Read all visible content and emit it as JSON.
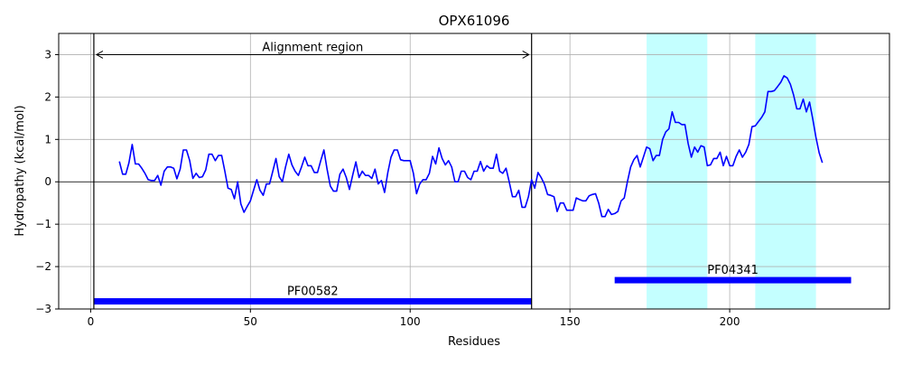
{
  "chart_data": {
    "type": "line",
    "title": "OPX61096",
    "xlabel": "Residues",
    "ylabel": "Hydropathy (kcal/mol)",
    "xlim": [
      -10,
      250
    ],
    "ylim": [
      -3,
      3.5
    ],
    "xticks": [
      0,
      50,
      100,
      150,
      200
    ],
    "yticks": [
      -3,
      -2,
      -1,
      0,
      1,
      2,
      3
    ],
    "ytick_labels": [
      "−3",
      "−2",
      "−1",
      "0",
      "1",
      "2",
      "3"
    ],
    "grid": true,
    "colors": {
      "line": "#0000ff",
      "domain_bar": "#0000ff",
      "highlight": "#c4ffff",
      "grid": "#b0b0b0",
      "axis": "#000000"
    },
    "alignment_region": {
      "label": "Alignment region",
      "x_start": 1,
      "x_end": 138,
      "arrow_y": 3.0
    },
    "highlight_regions": [
      {
        "x_start": 174,
        "x_end": 193
      },
      {
        "x_start": 208,
        "x_end": 227
      }
    ],
    "domains": [
      {
        "name": "PF00582",
        "x_start": 1,
        "x_end": 138,
        "y": -2.82
      },
      {
        "name": "PF04341",
        "x_start": 164,
        "x_end": 238,
        "y": -2.32
      }
    ],
    "series": [
      {
        "x": [
          9,
          10,
          11,
          12,
          13,
          14,
          15,
          16,
          17,
          18,
          19,
          20,
          21,
          22,
          23,
          24,
          25,
          26,
          27,
          28,
          29,
          30,
          31,
          32,
          33,
          34,
          35,
          36,
          37,
          38,
          39,
          40,
          41,
          42,
          43,
          44,
          45,
          46,
          47,
          48,
          49,
          50,
          51,
          52,
          53,
          54,
          55,
          56,
          57,
          58,
          59,
          60,
          61,
          62,
          63,
          64,
          65,
          66,
          67,
          68,
          69,
          70,
          71,
          72,
          73,
          74,
          75,
          76,
          77,
          78,
          79,
          80,
          81,
          82,
          83,
          84,
          85,
          86,
          87,
          88,
          89,
          90,
          91,
          92,
          93,
          94,
          95,
          96,
          97,
          98,
          99,
          100,
          101,
          102,
          103,
          104,
          105,
          106,
          107,
          108,
          109,
          110,
          111,
          112,
          113,
          114,
          115,
          116,
          117,
          118,
          119,
          120,
          121,
          122,
          123,
          124,
          125,
          126,
          127,
          128,
          129,
          130,
          131,
          132,
          133,
          134,
          135,
          136,
          137,
          138,
          139,
          140,
          141,
          142,
          143,
          144,
          145,
          146,
          147,
          148,
          149,
          150,
          151,
          152,
          153,
          154,
          155,
          156,
          157,
          158,
          159,
          160,
          161,
          162,
          163,
          164,
          165,
          166,
          167,
          168,
          169,
          170,
          171,
          172,
          173,
          174,
          175,
          176,
          177,
          178,
          179,
          180,
          181,
          182,
          183,
          184,
          185,
          186,
          187,
          188,
          189,
          190,
          191,
          192,
          193,
          194,
          195,
          196,
          197,
          198,
          199,
          200,
          201,
          202,
          203,
          204,
          205,
          206,
          207,
          208,
          209,
          210,
          211,
          212,
          213,
          214,
          215,
          216,
          217,
          218,
          219,
          220,
          221,
          222,
          223,
          224,
          225,
          226,
          227,
          228,
          229
        ],
        "values": [
          0.48,
          0.18,
          0.18,
          0.45,
          0.88,
          0.42,
          0.42,
          0.32,
          0.2,
          0.05,
          0.03,
          0.03,
          0.15,
          -0.08,
          0.25,
          0.35,
          0.35,
          0.32,
          0.07,
          0.3,
          0.75,
          0.75,
          0.5,
          0.08,
          0.2,
          0.1,
          0.12,
          0.28,
          0.65,
          0.65,
          0.5,
          0.62,
          0.62,
          0.25,
          -0.15,
          -0.18,
          -0.4,
          0.0,
          -0.52,
          -0.72,
          -0.58,
          -0.45,
          -0.2,
          0.05,
          -0.2,
          -0.32,
          -0.05,
          -0.05,
          0.25,
          0.55,
          0.12,
          0.0,
          0.35,
          0.65,
          0.4,
          0.25,
          0.15,
          0.35,
          0.58,
          0.38,
          0.38,
          0.22,
          0.22,
          0.5,
          0.75,
          0.3,
          -0.1,
          -0.22,
          -0.22,
          0.18,
          0.3,
          0.1,
          -0.18,
          0.15,
          0.47,
          0.1,
          0.25,
          0.15,
          0.15,
          0.08,
          0.3,
          -0.05,
          0.03,
          -0.25,
          0.22,
          0.58,
          0.75,
          0.75,
          0.52,
          0.5,
          0.5,
          0.5,
          0.2,
          -0.28,
          -0.05,
          0.05,
          0.05,
          0.2,
          0.6,
          0.42,
          0.8,
          0.55,
          0.4,
          0.5,
          0.35,
          0.0,
          0.0,
          0.25,
          0.25,
          0.1,
          0.05,
          0.25,
          0.25,
          0.48,
          0.25,
          0.38,
          0.32,
          0.32,
          0.65,
          0.25,
          0.2,
          0.32,
          0.0,
          -0.35,
          -0.35,
          -0.2,
          -0.6,
          -0.6,
          -0.35,
          0.05,
          -0.15,
          0.22,
          0.1,
          -0.05,
          -0.3,
          -0.32,
          -0.35,
          -0.7,
          -0.5,
          -0.5,
          -0.67,
          -0.67,
          -0.67,
          -0.38,
          -0.42,
          -0.45,
          -0.45,
          -0.33,
          -0.3,
          -0.28,
          -0.5,
          -0.82,
          -0.82,
          -0.65,
          -0.77,
          -0.75,
          -0.7,
          -0.45,
          -0.38,
          0.0,
          0.35,
          0.52,
          0.62,
          0.35,
          0.58,
          0.82,
          0.78,
          0.5,
          0.62,
          0.62,
          1.0,
          1.18,
          1.25,
          1.65,
          1.4,
          1.4,
          1.35,
          1.35,
          0.9,
          0.58,
          0.82,
          0.7,
          0.85,
          0.82,
          0.38,
          0.4,
          0.55,
          0.55,
          0.7,
          0.38,
          0.6,
          0.38,
          0.38,
          0.6,
          0.75,
          0.58,
          0.7,
          0.88,
          1.3,
          1.32,
          1.42,
          1.52,
          1.65,
          2.13,
          2.13,
          2.15,
          2.25,
          2.35,
          2.5,
          2.45,
          2.3,
          2.05,
          1.72,
          1.72,
          1.95,
          1.65,
          1.88,
          1.48,
          1.05,
          0.68,
          0.45
        ]
      }
    ]
  }
}
